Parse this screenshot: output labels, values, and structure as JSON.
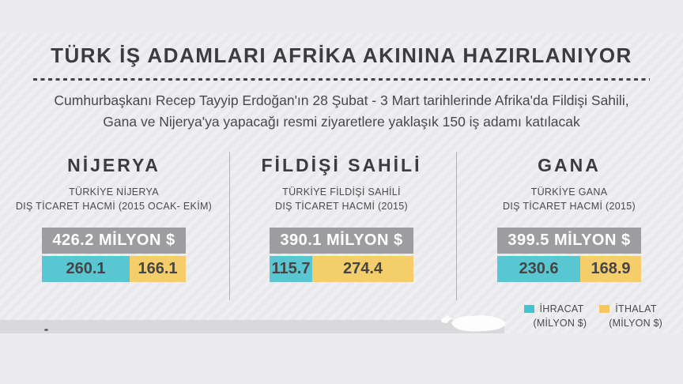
{
  "header": {
    "title": "TÜRK İŞ ADAMLARI AFRİKA AKININA HAZIRLANIYOR",
    "subtitle": "Cumhurbaşkanı Recep Tayyip Erdoğan'ın 28 Şubat - 3 Mart tarihlerinde Afrika'da Fildişi Sahili, Gana ve Nijerya'ya yapacağı resmi ziyaretlere yaklaşık 150 iş adamı katılacak"
  },
  "panels": [
    {
      "country": "NİJERYA",
      "label_line1": "TÜRKİYE NİJERYA",
      "label_line2": "DIŞ TİCARET HACMİ (2015 OCAK- EKİM)",
      "total_label": "426.2 MİLYON $",
      "export_value": 260.1,
      "import_value": 166.1
    },
    {
      "country": "FİLDİŞİ SAHİLİ",
      "label_line1": "TÜRKİYE FİLDİŞİ SAHİLİ",
      "label_line2": "DIŞ TİCARET HACMİ (2015)",
      "total_label": "390.1 MİLYON $",
      "export_value": 115.7,
      "import_value": 274.4
    },
    {
      "country": "GANA",
      "label_line1": "TÜRKİYE GANA",
      "label_line2": "DIŞ TİCARET HACMİ (2015)",
      "total_label": "399.5 MİLYON $",
      "export_value": 230.6,
      "import_value": 168.9
    }
  ],
  "legend": {
    "items": [
      {
        "label": "İHRACAT",
        "unit": "(MİLYON $)",
        "color": "#45c2ce"
      },
      {
        "label": "İTHALAT",
        "unit": "(MİLYON $)",
        "color": "#f5c75e"
      }
    ]
  },
  "colors": {
    "export_teal": "#58c7d2",
    "import_yellow": "#f4ce6a",
    "total_gray": "#9d9da0",
    "heading_dark": "#3c3c3e",
    "band_gray": "#d9d9db",
    "background": "#ececee"
  },
  "chart_data": {
    "type": "bar",
    "orientation": "horizontal-stacked",
    "title": "TÜRK İŞ ADAMLARI AFRİKA AKININA HAZIRLANIYOR",
    "subtitle": "Cumhurbaşkanı Recep Tayyip Erdoğan'ın 28 Şubat - 3 Mart tarihlerinde Afrika'da Fildişi Sahili, Gana ve Nijerya'ya yapacağı resmi ziyaretlere yaklaşık 150 iş adamı katılacak",
    "categories": [
      "NİJERYA",
      "FİLDİŞİ SAHİLİ",
      "GANA"
    ],
    "category_notes": [
      "TÜRKİYE NİJERYA DIŞ TİCARET HACMİ (2015 OCAK- EKİM)",
      "TÜRKİYE FİLDİŞİ SAHİLİ DIŞ TİCARET HACMİ (2015)",
      "TÜRKİYE GANA DIŞ TİCARET HACMİ (2015)"
    ],
    "series": [
      {
        "name": "İHRACAT (MİLYON $)",
        "values": [
          260.1,
          115.7,
          230.6
        ]
      },
      {
        "name": "İTHALAT (MİLYON $)",
        "values": [
          166.1,
          274.4,
          168.9
        ]
      }
    ],
    "totals": [
      426.2,
      390.1,
      399.5
    ],
    "total_labels": [
      "426.2 MİLYON $",
      "390.1 MİLYON $",
      "399.5 MİLYON $"
    ],
    "legend_position": "bottom-right",
    "grid": false
  }
}
